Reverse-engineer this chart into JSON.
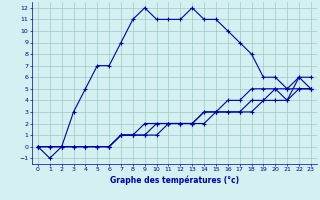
{
  "xlabel": "Graphe des températures (°c)",
  "bg_color": "#d4f0f0",
  "grid_color": "#a0c8c8",
  "line_color": "#0000aa",
  "xlim": [
    -0.5,
    23.5
  ],
  "ylim": [
    -1.5,
    12.5
  ],
  "xticks": [
    0,
    1,
    2,
    3,
    4,
    5,
    6,
    7,
    8,
    9,
    10,
    11,
    12,
    13,
    14,
    15,
    16,
    17,
    18,
    19,
    20,
    21,
    22,
    23
  ],
  "yticks": [
    -1,
    0,
    1,
    2,
    3,
    4,
    5,
    6,
    7,
    8,
    9,
    10,
    11,
    12
  ],
  "line1_x": [
    0,
    1,
    2,
    3,
    4,
    5,
    6,
    7,
    8,
    9,
    10,
    11,
    12,
    13,
    14,
    15,
    16,
    17,
    18,
    19,
    20,
    21,
    22,
    23
  ],
  "line1_y": [
    0,
    -1,
    0,
    3,
    5,
    7,
    7,
    9,
    11,
    12,
    11,
    11,
    11,
    12,
    11,
    11,
    10,
    9,
    8,
    6,
    6,
    5,
    6,
    6
  ],
  "line2_x": [
    0,
    1,
    2,
    3,
    4,
    5,
    6,
    7,
    8,
    9,
    10,
    11,
    12,
    13,
    14,
    15,
    16,
    17,
    18,
    19,
    20,
    21,
    22,
    23
  ],
  "line2_y": [
    0,
    0,
    0,
    0,
    0,
    0,
    0,
    1,
    1,
    2,
    2,
    2,
    2,
    2,
    3,
    3,
    4,
    4,
    5,
    5,
    5,
    5,
    5,
    5
  ],
  "line3_x": [
    0,
    1,
    2,
    3,
    4,
    5,
    6,
    7,
    8,
    9,
    10,
    11,
    12,
    13,
    14,
    15,
    16,
    17,
    18,
    19,
    20,
    21,
    22,
    23
  ],
  "line3_y": [
    0,
    0,
    0,
    0,
    0,
    0,
    0,
    1,
    1,
    1,
    2,
    2,
    2,
    2,
    3,
    3,
    3,
    3,
    4,
    4,
    4,
    4,
    5,
    5
  ],
  "line4_x": [
    0,
    1,
    2,
    3,
    4,
    5,
    6,
    7,
    8,
    9,
    10,
    11,
    12,
    13,
    14,
    15,
    16,
    17,
    18,
    19,
    20,
    21,
    22,
    23
  ],
  "line4_y": [
    0,
    0,
    0,
    0,
    0,
    0,
    0,
    1,
    1,
    1,
    1,
    2,
    2,
    2,
    2,
    3,
    3,
    3,
    3,
    4,
    5,
    4,
    6,
    5
  ]
}
